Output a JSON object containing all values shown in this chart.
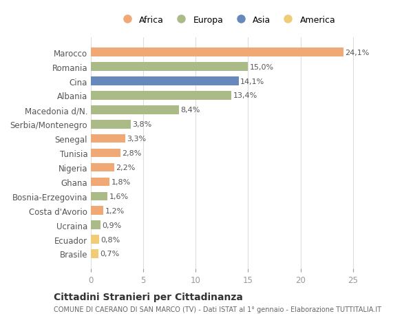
{
  "categories": [
    "Brasile",
    "Ecuador",
    "Ucraina",
    "Costa d'Avorio",
    "Bosnia-Erzegovina",
    "Ghana",
    "Nigeria",
    "Tunisia",
    "Senegal",
    "Serbia/Montenegro",
    "Macedonia d/N.",
    "Albania",
    "Cina",
    "Romania",
    "Marocco"
  ],
  "values": [
    0.7,
    0.8,
    0.9,
    1.2,
    1.6,
    1.8,
    2.2,
    2.8,
    3.3,
    3.8,
    8.4,
    13.4,
    14.1,
    15.0,
    24.1
  ],
  "labels": [
    "0,7%",
    "0,8%",
    "0,9%",
    "1,2%",
    "1,6%",
    "1,8%",
    "2,2%",
    "2,8%",
    "3,3%",
    "3,8%",
    "8,4%",
    "13,4%",
    "14,1%",
    "15,0%",
    "24,1%"
  ],
  "continents": [
    "America",
    "America",
    "Europa",
    "Africa",
    "Europa",
    "Africa",
    "Africa",
    "Africa",
    "Africa",
    "Europa",
    "Europa",
    "Europa",
    "Asia",
    "Europa",
    "Africa"
  ],
  "colors": {
    "Africa": "#F0A875",
    "Europa": "#AABB88",
    "Asia": "#6688BB",
    "America": "#F0CC77"
  },
  "legend_order": [
    "Africa",
    "Europa",
    "Asia",
    "America"
  ],
  "xlim": [
    0,
    26
  ],
  "xticks": [
    0,
    5,
    10,
    15,
    20,
    25
  ],
  "title": "Cittadini Stranieri per Cittadinanza",
  "subtitle": "COMUNE DI CAERANO DI SAN MARCO (TV) - Dati ISTAT al 1° gennaio - Elaborazione TUTTITALIA.IT",
  "bg_color": "#ffffff",
  "grid_color": "#dddddd",
  "bar_height": 0.6
}
